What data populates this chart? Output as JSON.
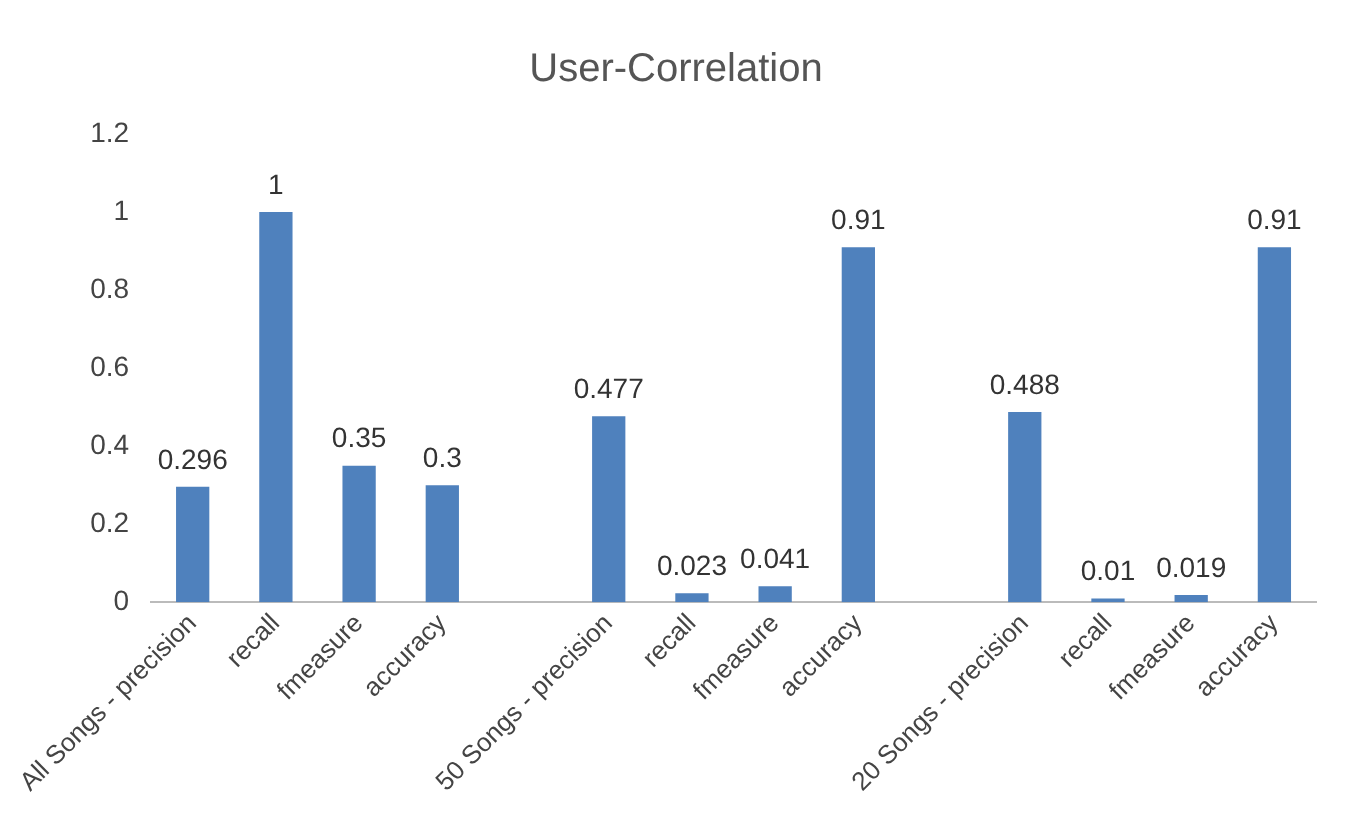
{
  "chart_data": {
    "type": "bar",
    "title": "User-Correlation",
    "categories": [
      "All Songs - precision",
      "recall",
      "fmeasure",
      "accuracy",
      null,
      "50 Songs - precision",
      "recall",
      "fmeasure",
      "accuracy",
      null,
      "20 Songs - precision",
      "recall",
      "fmeasure",
      "accuracy"
    ],
    "values": [
      0.296,
      1,
      0.35,
      0.3,
      null,
      0.477,
      0.023,
      0.041,
      0.91,
      null,
      0.488,
      0.01,
      0.019,
      0.91
    ],
    "color": "#4f81bd",
    "ylim": [
      0,
      1.2
    ],
    "yticks": [
      0,
      0.2,
      0.4,
      0.6,
      0.8,
      1,
      1.2
    ],
    "data_labels": true,
    "grid": false,
    "legend": false
  }
}
